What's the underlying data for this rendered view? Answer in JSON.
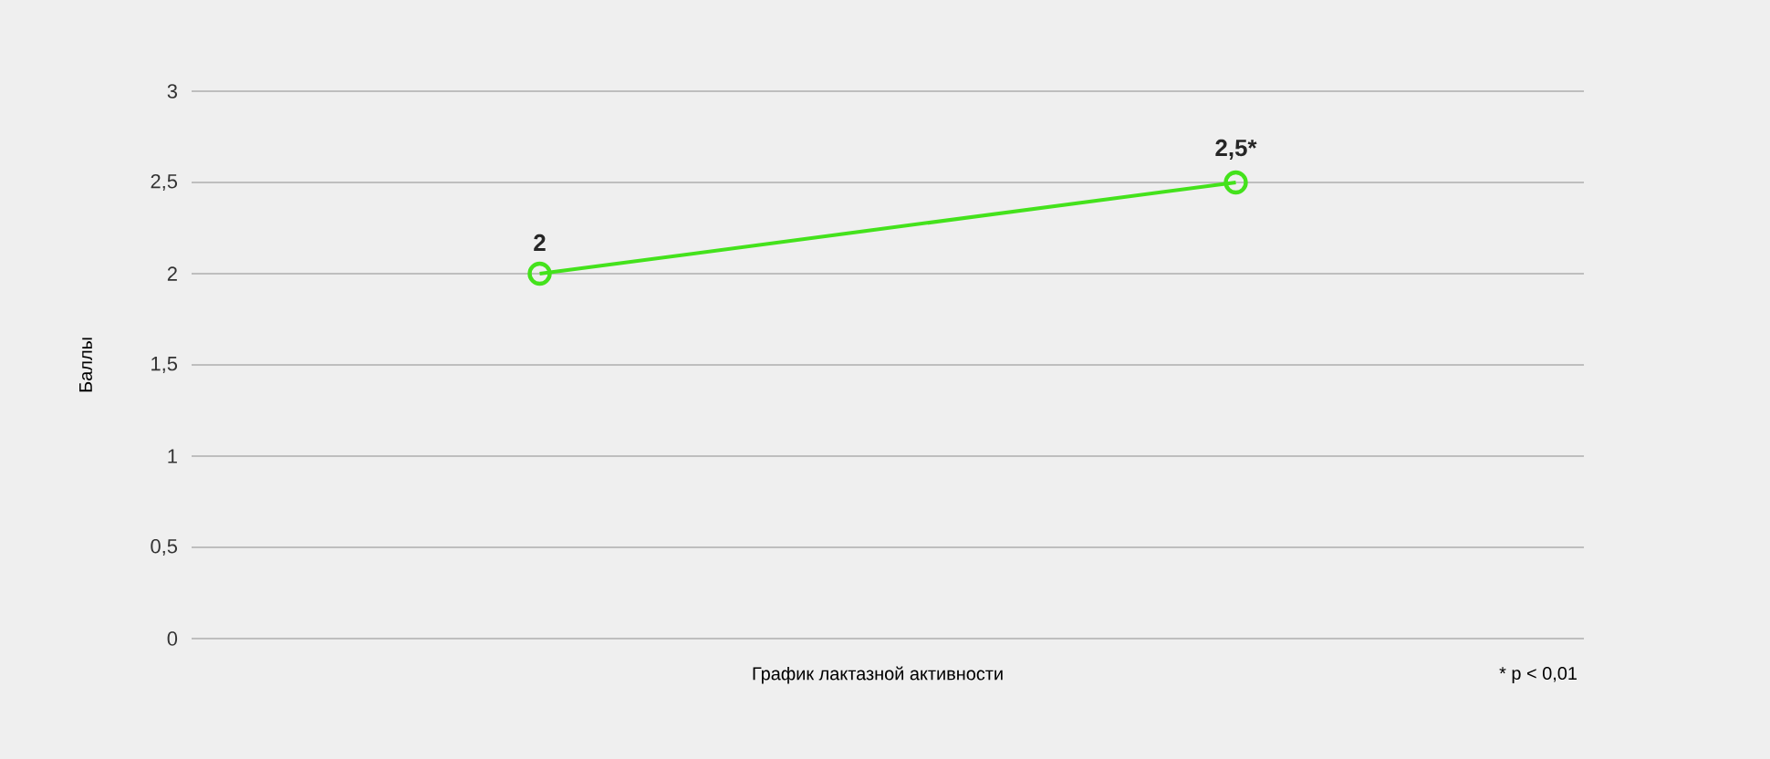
{
  "chart_data": {
    "type": "line",
    "xlabel": "График лактазной активности",
    "ylabel": "Баллы",
    "categories": [
      null,
      null
    ],
    "series": [
      {
        "color": "#44e21c",
        "values": [
          2,
          2.5
        ],
        "value_labels": [
          "2",
          "2,5*"
        ]
      }
    ],
    "ylim": [
      0,
      3
    ],
    "yticks": [
      0,
      {
        "value": 0.5,
        "label": "0,5"
      },
      1,
      {
        "value": 1.5,
        "label": "1,5"
      },
      2,
      {
        "value": 2.5,
        "label": "2,5"
      },
      3
    ],
    "grid": "y",
    "marker": "circle",
    "line_style": "solid",
    "annotations": [
      "* p < 0,01"
    ]
  }
}
